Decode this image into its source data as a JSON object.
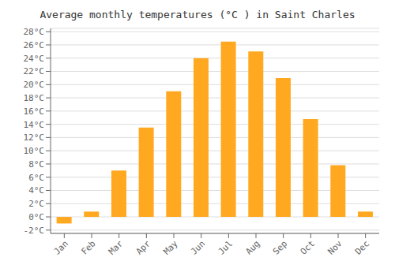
{
  "chart_data": {
    "type": "bar",
    "title": "Average monthly temperatures (°C ) in Saint Charles",
    "categories": [
      "Jan",
      "Feb",
      "Mar",
      "Apr",
      "May",
      "Jun",
      "Jul",
      "Aug",
      "Sep",
      "Oct",
      "Nov",
      "Dec"
    ],
    "values": [
      -1.0,
      0.8,
      7.0,
      13.5,
      19.0,
      24.0,
      26.5,
      25.0,
      21.0,
      14.8,
      7.8,
      0.8
    ],
    "color": "#FFA820",
    "ylim": [
      -2.5,
      28.5
    ],
    "yticks": [
      {
        "value": -2,
        "label": "-2°C"
      },
      {
        "value": 0,
        "label": "0°C"
      },
      {
        "value": 2,
        "label": "2°C"
      },
      {
        "value": 4,
        "label": "4°C"
      },
      {
        "value": 6,
        "label": "6°C"
      },
      {
        "value": 8,
        "label": "8°C"
      },
      {
        "value": 10,
        "label": "10°C"
      },
      {
        "value": 12,
        "label": "12°C"
      },
      {
        "value": 14,
        "label": "14°C"
      },
      {
        "value": 16,
        "label": "16°C"
      },
      {
        "value": 18,
        "label": "18°C"
      },
      {
        "value": 20,
        "label": "20°C"
      },
      {
        "value": 22,
        "label": "22°C"
      },
      {
        "value": 24,
        "label": "24°C"
      },
      {
        "value": 26,
        "label": "26°C"
      },
      {
        "value": 28,
        "label": "28°C"
      }
    ],
    "grid": true
  }
}
